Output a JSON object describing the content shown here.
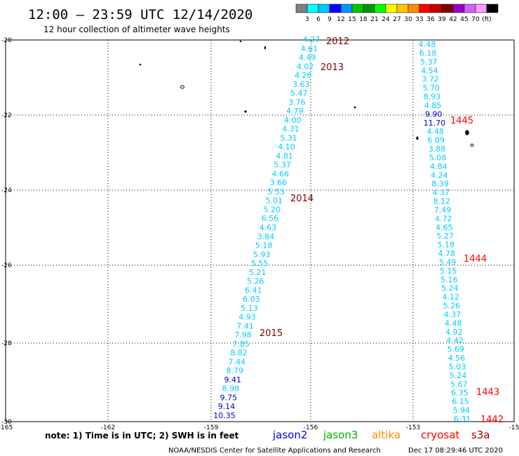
{
  "title": "12:00 — 23:59 UTC 12/14/2020",
  "subtitle": "12 hour collection of altimeter wave heights",
  "colorscale": {
    "colors": [
      "#808080",
      "#00ffff",
      "#00c8ff",
      "#0000ff",
      "#0096ff",
      "#00c800",
      "#009600",
      "#00ff00",
      "#ffff00",
      "#ffc800",
      "#ff8c00",
      "#ff0000",
      "#c80000",
      "#800000",
      "#9900cc",
      "#cc66ff",
      "#ff99ff",
      "#000000"
    ],
    "labels": [
      "3",
      "6",
      "9",
      "12",
      "15",
      "18",
      "21",
      "24",
      "27",
      "30",
      "33",
      "36",
      "39",
      "42",
      "45",
      "70",
      "(ft)"
    ]
  },
  "axes": {
    "x_ticks": [
      "-165",
      "-162",
      "-159",
      "-156",
      "-153",
      "-15"
    ],
    "y_ticks": [
      "-20",
      "-22",
      "-24",
      "-26",
      "-28",
      "-30"
    ]
  },
  "track_left": [
    {
      "v": "4.27",
      "c": "#00ccff"
    },
    {
      "v": "4.61",
      "c": "#00ccff"
    },
    {
      "v": "4.49",
      "c": "#00ccff"
    },
    {
      "v": "4.02",
      "c": "#00ccff"
    },
    {
      "v": "4.26",
      "c": "#00ccff"
    },
    {
      "v": "3.63",
      "c": "#00ccff"
    },
    {
      "v": "5.47",
      "c": "#00ccff"
    },
    {
      "v": "3.76",
      "c": "#00ccff"
    },
    {
      "v": "4.79",
      "c": "#00ccff"
    },
    {
      "v": "4.00",
      "c": "#00ccff"
    },
    {
      "v": "4.31",
      "c": "#00ccff"
    },
    {
      "v": "5.31",
      "c": "#00ccff"
    },
    {
      "v": "4.10",
      "c": "#00ccff"
    },
    {
      "v": "4.81",
      "c": "#00ccff"
    },
    {
      "v": "5.37",
      "c": "#00ccff"
    },
    {
      "v": "4.66",
      "c": "#00ccff"
    },
    {
      "v": "3.66",
      "c": "#00ccff"
    },
    {
      "v": "5.53",
      "c": "#00ccff"
    },
    {
      "v": "5.01",
      "c": "#00ccff"
    },
    {
      "v": "5.20",
      "c": "#00ccff"
    },
    {
      "v": "6.56",
      "c": "#00ccff"
    },
    {
      "v": "4.63",
      "c": "#00ccff"
    },
    {
      "v": "3.84",
      "c": "#00ccff"
    },
    {
      "v": "5.18",
      "c": "#00ccff"
    },
    {
      "v": "5.93",
      "c": "#00ccff"
    },
    {
      "v": "5.55",
      "c": "#00ccff"
    },
    {
      "v": "5.21",
      "c": "#00ccff"
    },
    {
      "v": "5.26",
      "c": "#00ccff"
    },
    {
      "v": "6.41",
      "c": "#00ccff"
    },
    {
      "v": "6.03",
      "c": "#00ccff"
    },
    {
      "v": "5.13",
      "c": "#00ccff"
    },
    {
      "v": "4.93",
      "c": "#00ccff"
    },
    {
      "v": "7.41",
      "c": "#00ccff"
    },
    {
      "v": "7.98",
      "c": "#00ccff"
    },
    {
      "v": "7.85",
      "c": "#00ccff"
    },
    {
      "v": "8.82",
      "c": "#00ccff"
    },
    {
      "v": "7.44",
      "c": "#00ccff"
    },
    {
      "v": "8.79",
      "c": "#00ccff"
    },
    {
      "v": "9.41",
      "c": "#0000cc"
    },
    {
      "v": "8.98",
      "c": "#00ccff"
    },
    {
      "v": "9.75",
      "c": "#0000cc"
    },
    {
      "v": "9.14",
      "c": "#0000cc"
    },
    {
      "v": "10.35",
      "c": "#0000cc"
    }
  ],
  "track_right": [
    {
      "v": "4.48",
      "c": "#00ccff"
    },
    {
      "v": "6.18",
      "c": "#00ccff"
    },
    {
      "v": "5.37",
      "c": "#00ccff"
    },
    {
      "v": "4.54",
      "c": "#00ccff"
    },
    {
      "v": "3.72",
      "c": "#00ccff"
    },
    {
      "v": "5.70",
      "c": "#00ccff"
    },
    {
      "v": "8.93",
      "c": "#00ccff"
    },
    {
      "v": "4.85",
      "c": "#00ccff"
    },
    {
      "v": "9.90",
      "c": "#0000cc"
    },
    {
      "v": "11.70",
      "c": "#0000cc"
    },
    {
      "v": "4.48",
      "c": "#00ccff"
    },
    {
      "v": "6.09",
      "c": "#00ccff"
    },
    {
      "v": "3.88",
      "c": "#00ccff"
    },
    {
      "v": "5.08",
      "c": "#00ccff"
    },
    {
      "v": "4.84",
      "c": "#00ccff"
    },
    {
      "v": "4.24",
      "c": "#00ccff"
    },
    {
      "v": "8.39",
      "c": "#00ccff"
    },
    {
      "v": "4.37",
      "c": "#00ccff"
    },
    {
      "v": "8.12",
      "c": "#00ccff"
    },
    {
      "v": "7.49",
      "c": "#00ccff"
    },
    {
      "v": "4.72",
      "c": "#00ccff"
    },
    {
      "v": "4.65",
      "c": "#00ccff"
    },
    {
      "v": "5.27",
      "c": "#00ccff"
    },
    {
      "v": "5.18",
      "c": "#00ccff"
    },
    {
      "v": "4.78",
      "c": "#00ccff"
    },
    {
      "v": "5.49",
      "c": "#00ccff"
    },
    {
      "v": "5.15",
      "c": "#00ccff"
    },
    {
      "v": "5.16",
      "c": "#00ccff"
    },
    {
      "v": "5.24",
      "c": "#00ccff"
    },
    {
      "v": "4.12",
      "c": "#00ccff"
    },
    {
      "v": "5.26",
      "c": "#00ccff"
    },
    {
      "v": "4.37",
      "c": "#00ccff"
    },
    {
      "v": "4.48",
      "c": "#00ccff"
    },
    {
      "v": "4.92",
      "c": "#00ccff"
    },
    {
      "v": "4.42",
      "c": "#00ccff"
    },
    {
      "v": "5.69",
      "c": "#00ccff"
    },
    {
      "v": "4.56",
      "c": "#00ccff"
    },
    {
      "v": "5.03",
      "c": "#00ccff"
    },
    {
      "v": "5.24",
      "c": "#00ccff"
    },
    {
      "v": "5.67",
      "c": "#00ccff"
    },
    {
      "v": "6.35",
      "c": "#00ccff"
    },
    {
      "v": "6.15",
      "c": "#00ccff"
    },
    {
      "v": "5.94",
      "c": "#00ccff"
    },
    {
      "v": "6.31",
      "c": "#00ccff"
    }
  ],
  "time_labels_left": [
    {
      "t": "2012",
      "c": "#800000"
    },
    {
      "t": "2013",
      "c": "#800000"
    },
    {
      "t": "2014",
      "c": "#800000"
    },
    {
      "t": "2015",
      "c": "#800000"
    }
  ],
  "time_labels_right": [
    {
      "t": "1445",
      "c": "#ff0000"
    },
    {
      "t": "1444",
      "c": "#ff0000"
    },
    {
      "t": "1443",
      "c": "#ff0000"
    },
    {
      "t": "1442",
      "c": "#ff0000"
    }
  ],
  "note": "note: 1) Time is in UTC; 2) SWH is in feet",
  "satellites": [
    {
      "name": "jason2",
      "color": "#0000ff"
    },
    {
      "name": "jason3",
      "color": "#00aa00"
    },
    {
      "name": "altika",
      "color": "#ff8c00"
    },
    {
      "name": "cryosat",
      "color": "#ff0000"
    },
    {
      "name": "s3a",
      "color": "#990000"
    }
  ],
  "credit": "NOAA/NESDIS Center for Satellite Applications and Research",
  "generated": "Dec 17 08:29:46 UTC 2020"
}
